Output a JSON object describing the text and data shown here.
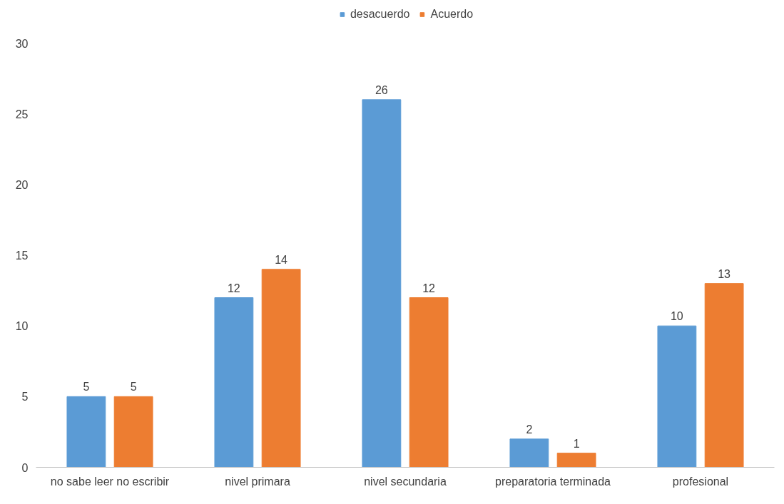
{
  "chart_data": {
    "type": "bar",
    "categories": [
      "no sabe leer no escribir",
      "nivel primara",
      "nivel secundaria",
      "preparatoria terminada",
      "profesional"
    ],
    "series": [
      {
        "name": "desacuerdo",
        "color": "#5b9bd5",
        "values": [
          5,
          12,
          26,
          2,
          10
        ]
      },
      {
        "name": "Acuerdo",
        "color": "#ed7d31",
        "values": [
          5,
          14,
          12,
          1,
          13
        ]
      }
    ],
    "ylim": [
      0,
      30
    ],
    "yticks": [
      0,
      5,
      10,
      15,
      20,
      25,
      30
    ],
    "grid": false,
    "legend": "top",
    "data_labels": true
  }
}
